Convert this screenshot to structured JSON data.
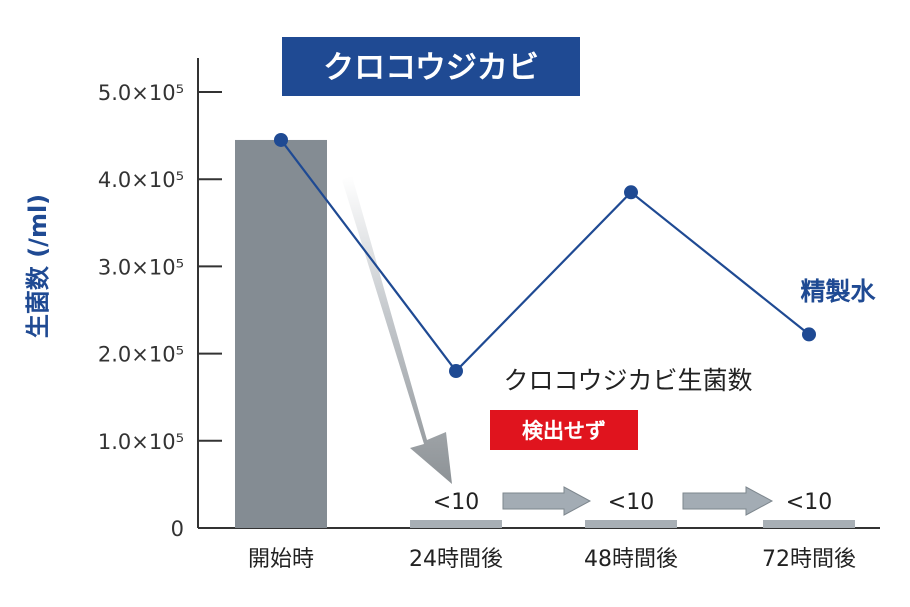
{
  "chart_data": {
    "type": "bar+line",
    "title": "クロコウジカビ",
    "ylabel": "生菌数 (/ml)",
    "ylim": [
      0,
      500000
    ],
    "yticks": [
      {
        "value": 0,
        "label": "0"
      },
      {
        "value": 100000,
        "label": "1.0×10⁵"
      },
      {
        "value": 200000,
        "label": "2.0×10⁵"
      },
      {
        "value": 300000,
        "label": "3.0×10⁵"
      },
      {
        "value": 400000,
        "label": "4.0×10⁵"
      },
      {
        "value": 500000,
        "label": "5.0×10⁵"
      }
    ],
    "categories": [
      "開始時",
      "24時間後",
      "48時間後",
      "72時間後"
    ],
    "bar_series": {
      "name": "クロコウジカビ生菌数",
      "values": [
        445000,
        10,
        10,
        10
      ],
      "labels": [
        "",
        "<10",
        "<10",
        "<10"
      ],
      "color": "#8a9299"
    },
    "line_series": {
      "name": "精製水",
      "values": [
        445000,
        180000,
        385000,
        222000
      ],
      "color": "#1f4a93"
    },
    "badge": "検出せず",
    "badge_color": "#e0141e",
    "title_bg_color": "#1f4a93",
    "arrow_color": "#a3acb4"
  }
}
